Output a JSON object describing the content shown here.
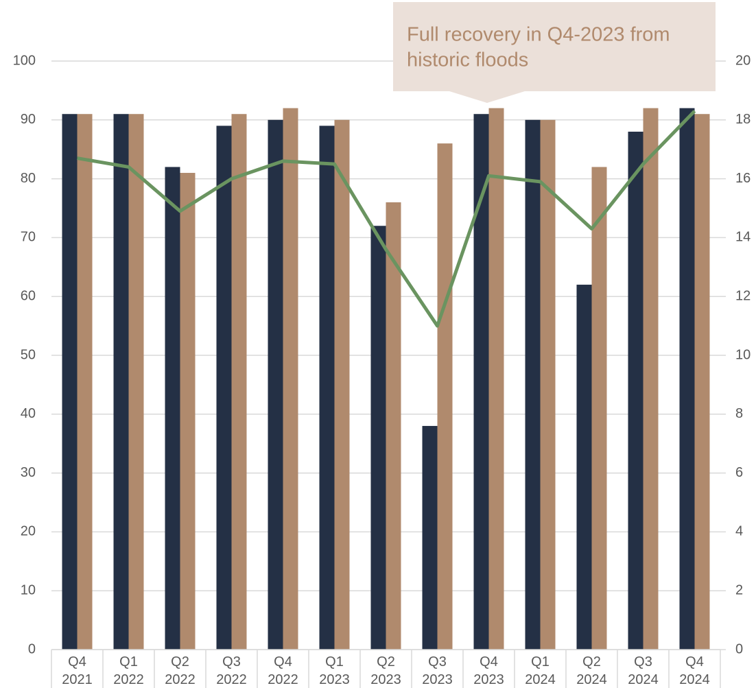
{
  "chart_data": {
    "type": "bar",
    "categories": [
      "Q4 2021",
      "Q1 2022",
      "Q2 2022",
      "Q3 2022",
      "Q4 2022",
      "Q1 2023",
      "Q2 2023",
      "Q3 2023",
      "Q4 2023",
      "Q1 2024",
      "Q2 2024",
      "Q3 2024",
      "Q4 2024"
    ],
    "series": [
      {
        "type": "bar",
        "color": "#243045",
        "values": [
          91,
          91,
          82,
          89,
          90,
          89,
          72,
          38,
          91,
          90,
          62,
          88,
          92
        ]
      },
      {
        "type": "bar",
        "color": "#b08a6d",
        "values": [
          91,
          91,
          81,
          91,
          92,
          90,
          76,
          86,
          92,
          90,
          82,
          92,
          91
        ]
      },
      {
        "type": "line",
        "axis": "y2",
        "color": "#6a9460",
        "values": [
          16.7,
          16.4,
          14.9,
          16.0,
          16.6,
          16.5,
          13.6,
          11.0,
          16.1,
          15.9,
          14.3,
          16.5,
          18.3
        ]
      }
    ],
    "ylim": [
      0,
      100
    ],
    "yticks": [
      0,
      10,
      20,
      30,
      40,
      50,
      60,
      70,
      80,
      90,
      100
    ],
    "y2lim": [
      0,
      20
    ],
    "y2ticks": [
      0,
      2,
      4,
      6,
      8,
      10,
      12,
      14,
      16,
      18,
      20
    ],
    "grid": true,
    "annotation": {
      "lines": [
        "Full recovery in Q4-2023 from",
        "historic floods"
      ]
    }
  }
}
